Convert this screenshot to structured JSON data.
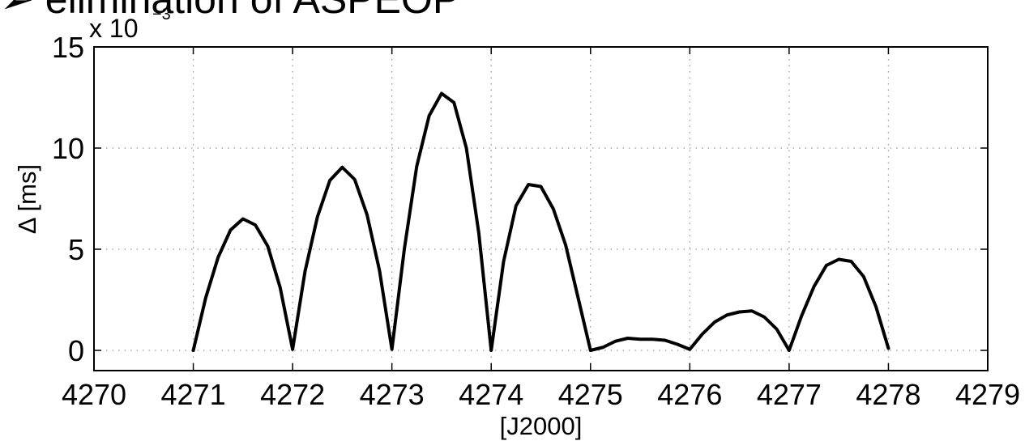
{
  "headline": "➢ elimination of ASPEOP",
  "chart_data": {
    "type": "line",
    "xlabel": "[J2000]",
    "ylabel": "Δ [ms]",
    "scale_factor_label": "x 10",
    "scale_factor_exponent": "−3",
    "xlim": [
      4270,
      4279
    ],
    "ylim": [
      -1,
      15
    ],
    "x_ticks": [
      4270,
      4271,
      4272,
      4273,
      4274,
      4275,
      4276,
      4277,
      4278,
      4279
    ],
    "y_ticks": [
      0,
      5,
      10,
      15
    ],
    "grid": true,
    "line_color": "#000000",
    "series": [
      {
        "x": [
          4271.0,
          4271.125,
          4271.25,
          4271.375,
          4271.5,
          4271.625,
          4271.75,
          4271.875,
          4272.0,
          4272.125,
          4272.25,
          4272.375,
          4272.5,
          4272.625,
          4272.75,
          4272.875,
          4273.0,
          4273.125,
          4273.25,
          4273.375,
          4273.5,
          4273.625,
          4273.75,
          4273.875,
          4274.0,
          4274.125,
          4274.25,
          4274.375,
          4274.5,
          4274.625,
          4274.75,
          4274.875,
          4275.0,
          4275.125,
          4275.25,
          4275.375,
          4275.5,
          4275.625,
          4275.75,
          4275.875,
          4276.0,
          4276.125,
          4276.25,
          4276.375,
          4276.5,
          4276.625,
          4276.75,
          4276.875,
          4277.0,
          4277.125,
          4277.25,
          4277.375,
          4277.5,
          4277.625,
          4277.75,
          4277.875,
          4278.0
        ],
        "y": [
          0.0,
          2.6,
          4.6,
          5.95,
          6.5,
          6.2,
          5.15,
          3.1,
          0.05,
          3.9,
          6.6,
          8.4,
          9.05,
          8.45,
          6.7,
          3.95,
          0.05,
          5.0,
          9.1,
          11.6,
          12.7,
          12.25,
          10.0,
          5.8,
          0.0,
          4.4,
          7.15,
          8.2,
          8.1,
          7.0,
          5.2,
          2.6,
          0.0,
          0.15,
          0.45,
          0.6,
          0.55,
          0.55,
          0.5,
          0.3,
          0.05,
          0.8,
          1.4,
          1.75,
          1.9,
          1.95,
          1.65,
          1.05,
          0.0,
          1.7,
          3.15,
          4.2,
          4.5,
          4.4,
          3.65,
          2.15,
          0.1
        ]
      }
    ]
  }
}
